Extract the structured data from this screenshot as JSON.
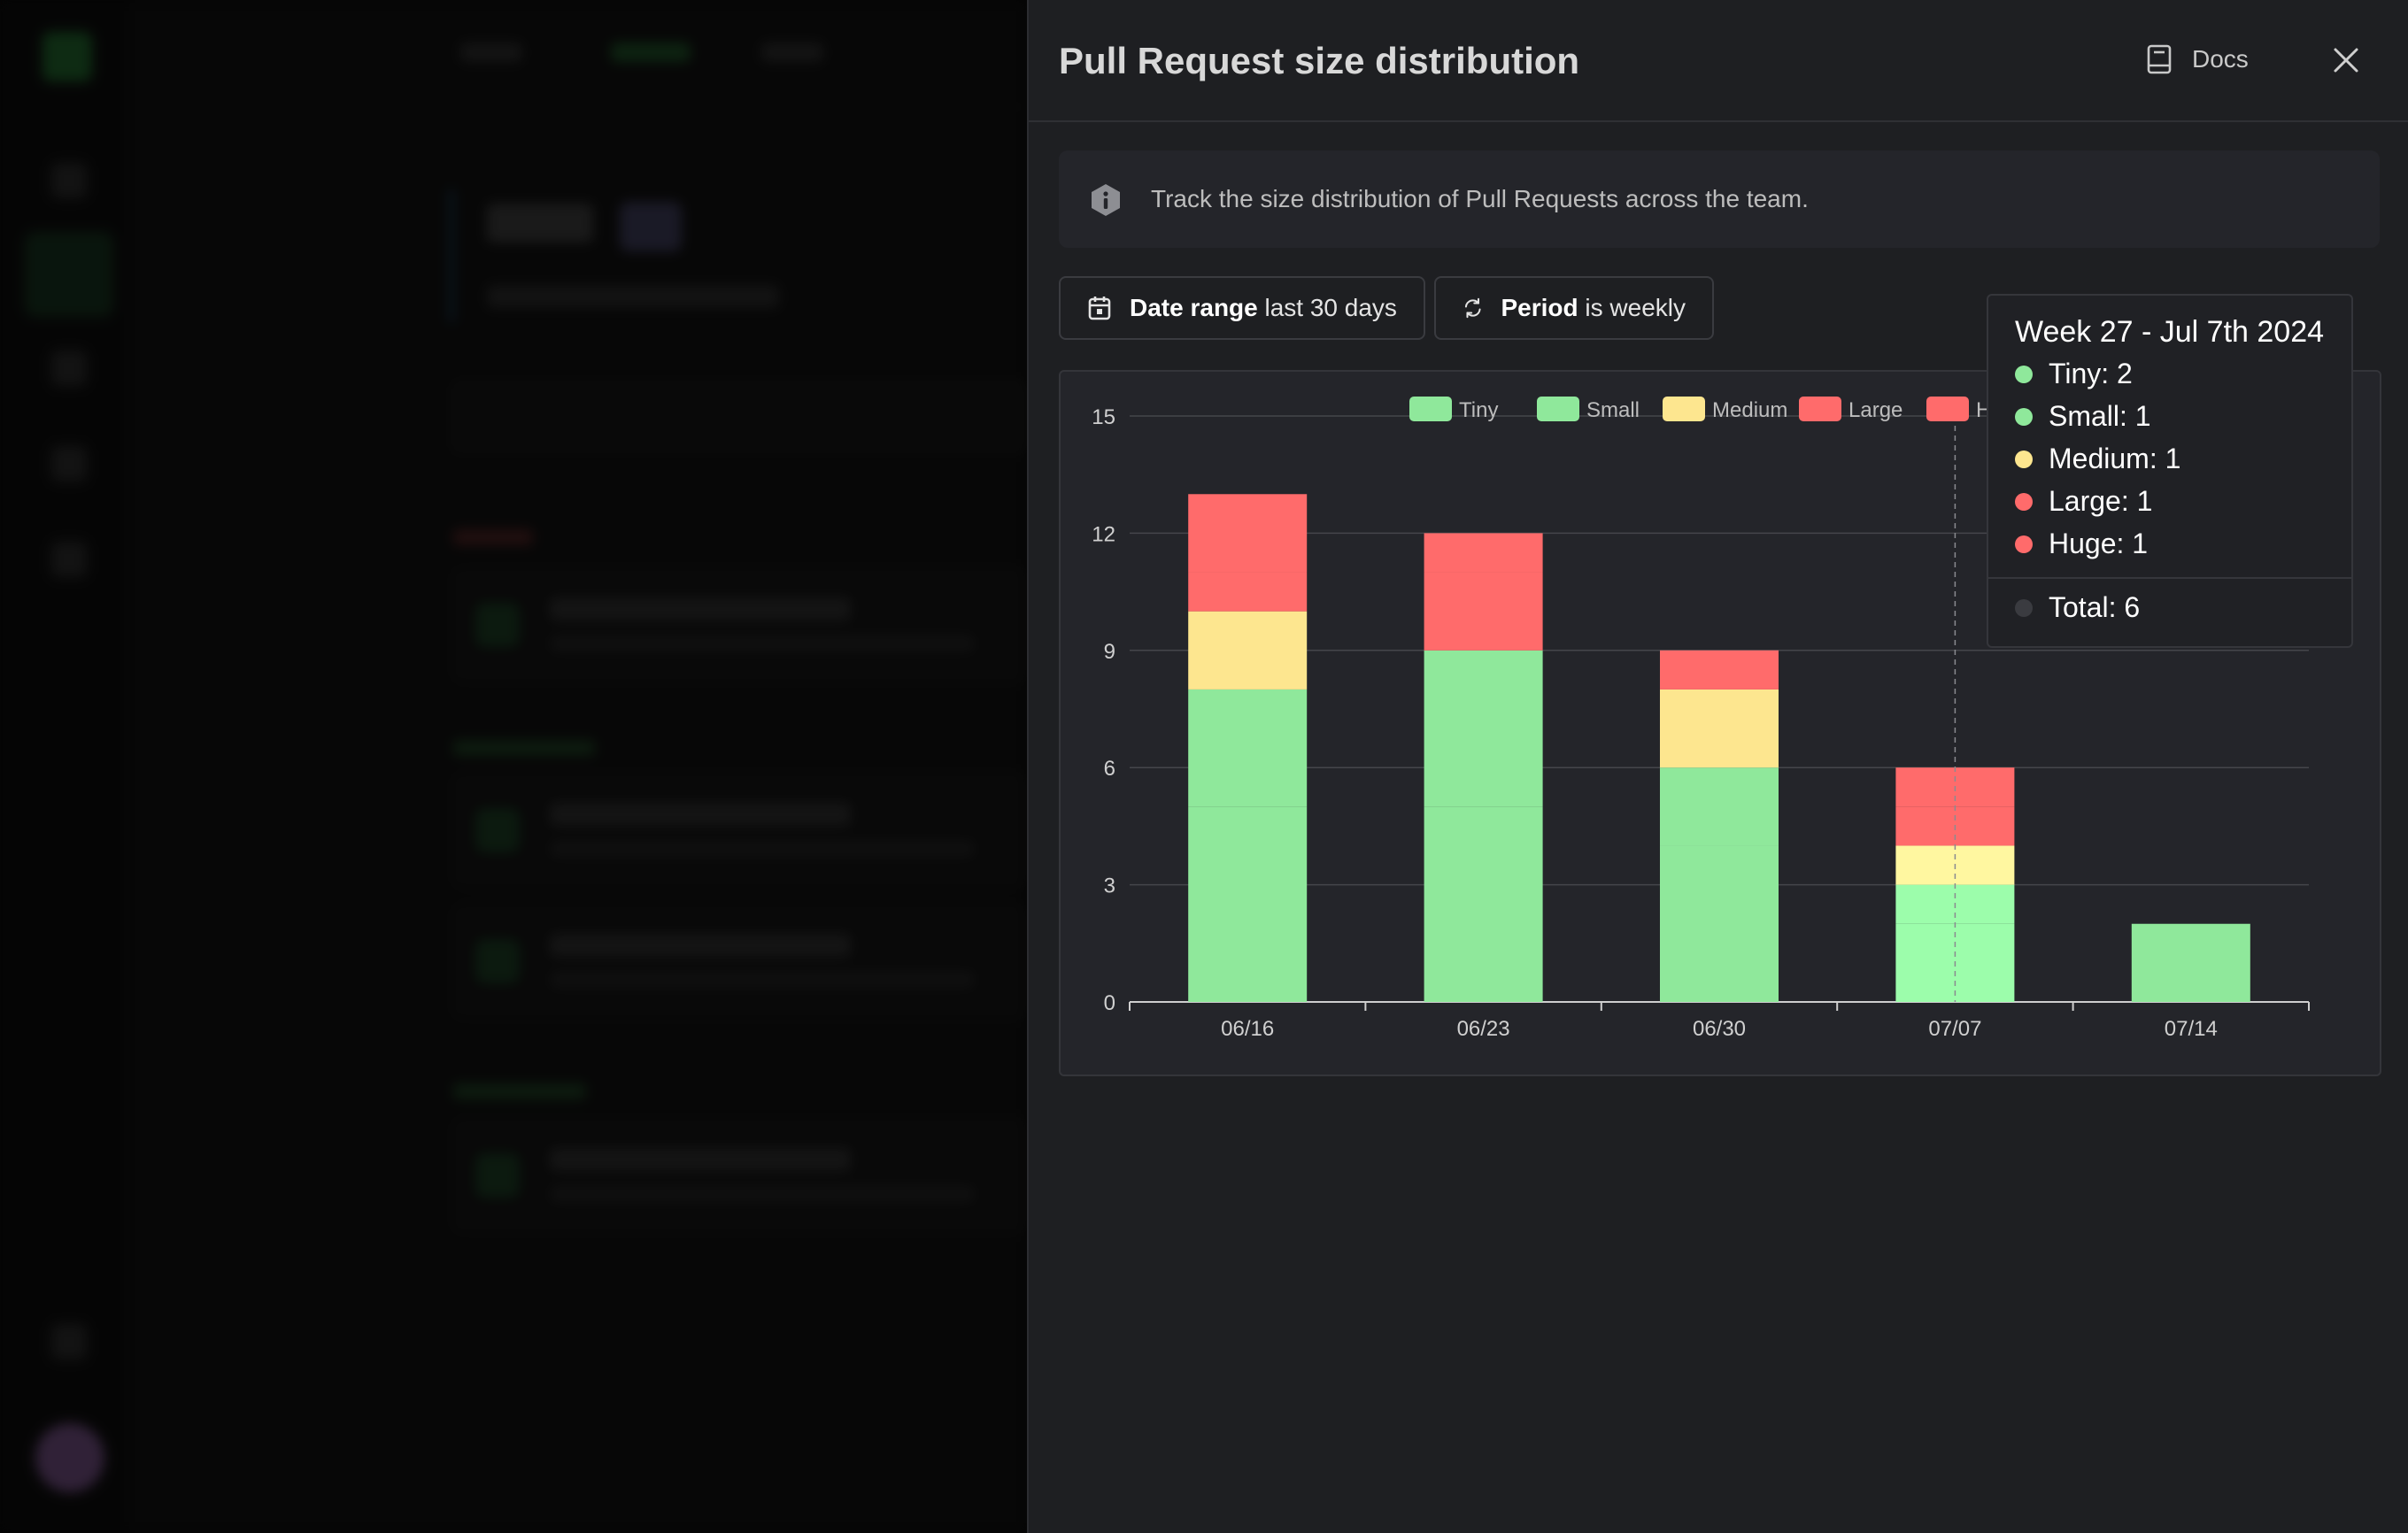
{
  "panel": {
    "title": "Pull Request size distribution",
    "docs_label": "Docs",
    "info_text": "Track the size distribution of Pull Requests across the team."
  },
  "filters": {
    "date_range_label": "Date range",
    "date_range_value": "last 30 days",
    "period_label": "Period",
    "period_value": "is weekly"
  },
  "colors": {
    "tiny": "#8fe89b",
    "small": "#8fe89b",
    "medium": "#fde68f",
    "large": "#ff6b6b",
    "huge": "#ff6b6b",
    "total_dot": "#3a3b40",
    "hover_tiny": "#9cfdab",
    "hover_medium": "#fff7a0"
  },
  "chart_data": {
    "type": "bar",
    "stacked": true,
    "categories": [
      "06/16",
      "06/23",
      "06/30",
      "07/07",
      "07/14"
    ],
    "series": [
      {
        "name": "Tiny",
        "values": [
          5,
          5,
          4,
          2,
          2
        ]
      },
      {
        "name": "Small",
        "values": [
          3,
          4,
          2,
          1,
          0
        ]
      },
      {
        "name": "Medium",
        "values": [
          2,
          0,
          2,
          1,
          0
        ]
      },
      {
        "name": "Large",
        "values": [
          1,
          2,
          1,
          1,
          0
        ]
      },
      {
        "name": "Huge",
        "values": [
          2,
          1,
          0,
          1,
          0
        ]
      }
    ],
    "legend_visible": [
      "Tiny",
      "Small",
      "Medium",
      "Large",
      "H"
    ],
    "legend_position": "top",
    "ylim": [
      0,
      15
    ],
    "yticks": [
      "0",
      "3",
      "6",
      "9",
      "12",
      "15"
    ],
    "grid": true,
    "hovered_category": "07/07"
  },
  "tooltip": {
    "title": "Week 27 - Jul 7th 2024",
    "rows": [
      "Tiny: 2",
      "Small: 1",
      "Medium: 1",
      "Large: 1",
      "Huge: 1"
    ],
    "total": "Total: 6"
  }
}
